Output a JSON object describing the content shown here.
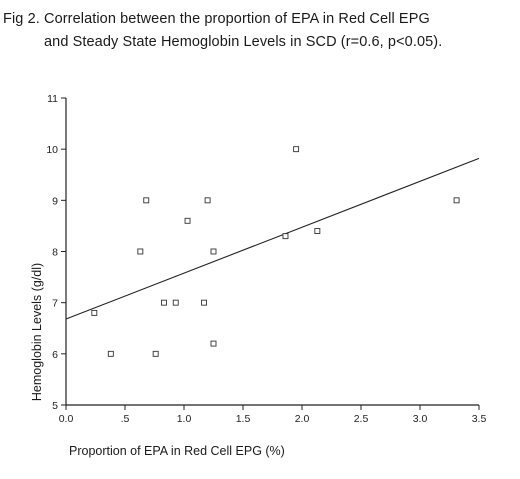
{
  "figure": {
    "caption_line1": "Fig 2. Correlation between the proportion of EPA in Red Cell EPG",
    "caption_line2": "and Steady State Hemoglobin Levels in SCD (r=0.6, p<0.05)."
  },
  "chart_data": {
    "type": "scatter",
    "xlabel": "Proportion of EPA in Red Cell EPG (%)",
    "ylabel": "Hemoglobin Levels (g/dl)",
    "xlim": [
      0,
      3.5
    ],
    "ylim": [
      5,
      11
    ],
    "x_ticks": [
      "0.0",
      ".5",
      "1.0",
      "1.5",
      "2.0",
      "2.5",
      "3.0",
      "3.5"
    ],
    "y_ticks": [
      "5",
      "6",
      "7",
      "8",
      "9",
      "10",
      "11"
    ],
    "points": [
      {
        "x": 0.24,
        "y": 6.8
      },
      {
        "x": 0.38,
        "y": 6.0
      },
      {
        "x": 0.63,
        "y": 8.0
      },
      {
        "x": 0.68,
        "y": 9.0
      },
      {
        "x": 0.76,
        "y": 6.0
      },
      {
        "x": 0.83,
        "y": 7.0
      },
      {
        "x": 0.93,
        "y": 7.0
      },
      {
        "x": 1.03,
        "y": 8.6
      },
      {
        "x": 1.17,
        "y": 7.0
      },
      {
        "x": 1.2,
        "y": 9.0
      },
      {
        "x": 1.25,
        "y": 8.0
      },
      {
        "x": 1.25,
        "y": 6.2
      },
      {
        "x": 1.86,
        "y": 8.3
      },
      {
        "x": 1.95,
        "y": 10.0
      },
      {
        "x": 2.13,
        "y": 8.4
      },
      {
        "x": 3.31,
        "y": 9.0
      }
    ],
    "regression_line": {
      "x": [
        0,
        3.5
      ],
      "y": [
        6.68,
        9.82
      ]
    },
    "grid": false,
    "legend": "none"
  }
}
